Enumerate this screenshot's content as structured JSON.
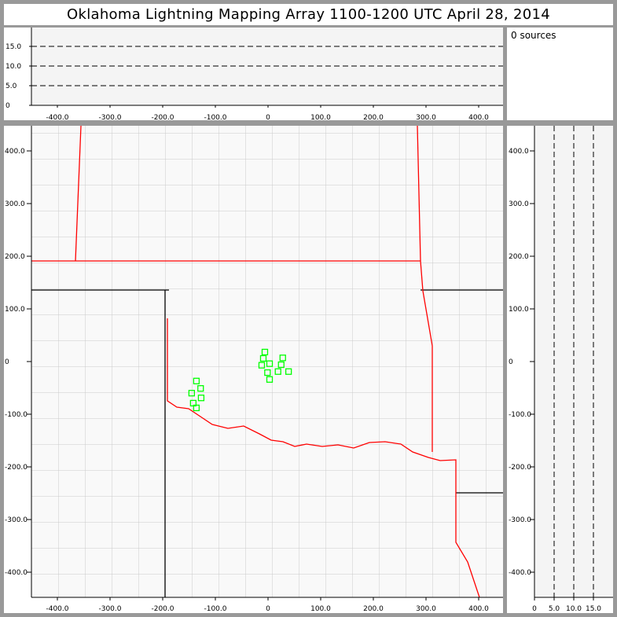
{
  "title": "Oklahoma Lightning Mapping Array   1100-1200 UTC  April 28, 2014",
  "source_count": "0 sources",
  "colors": {
    "state_border_red": "#ff0000",
    "county_line": "#999999",
    "source_marker": "#00ff00",
    "plot_bg": "#f4f4f4"
  },
  "plan_view": {
    "x_range_km": [
      -448,
      448
    ],
    "y_range_km": [
      -448,
      448
    ],
    "x_ticks": [
      "-400.0",
      "-300.0",
      "-200.0",
      "-100.0",
      "0",
      "100.0",
      "200.0",
      "300.0",
      "400.0"
    ],
    "y_ticks": [
      "400.0",
      "300.0",
      "200.0",
      "100.0",
      "0",
      "-100.0",
      "-200.0",
      "-300.0",
      "-400.0"
    ],
    "sources_km": [
      [
        -6,
        18
      ],
      [
        -9,
        6
      ],
      [
        28,
        7
      ],
      [
        3,
        -4
      ],
      [
        -12,
        -7
      ],
      [
        25,
        -6
      ],
      [
        -1,
        -21
      ],
      [
        19,
        -19
      ],
      [
        39,
        -19
      ],
      [
        3,
        -34
      ],
      [
        -136,
        -37
      ],
      [
        -128,
        -51
      ],
      [
        -145,
        -60
      ],
      [
        -127,
        -69
      ],
      [
        -142,
        -79
      ],
      [
        -136,
        -88
      ]
    ]
  },
  "altitude_x_view": {
    "alt_range_km": [
      0,
      20
    ],
    "alt_ticks": [
      "15.0",
      "10.0",
      "5.0",
      "0"
    ],
    "dashed_levels": [
      5,
      10,
      15
    ]
  },
  "altitude_y_view": {
    "alt_range_km": [
      0,
      20
    ],
    "alt_ticks": [
      "0",
      "5.0",
      "10.0",
      "15.0"
    ],
    "dashed_levels": [
      5,
      10,
      15
    ]
  }
}
